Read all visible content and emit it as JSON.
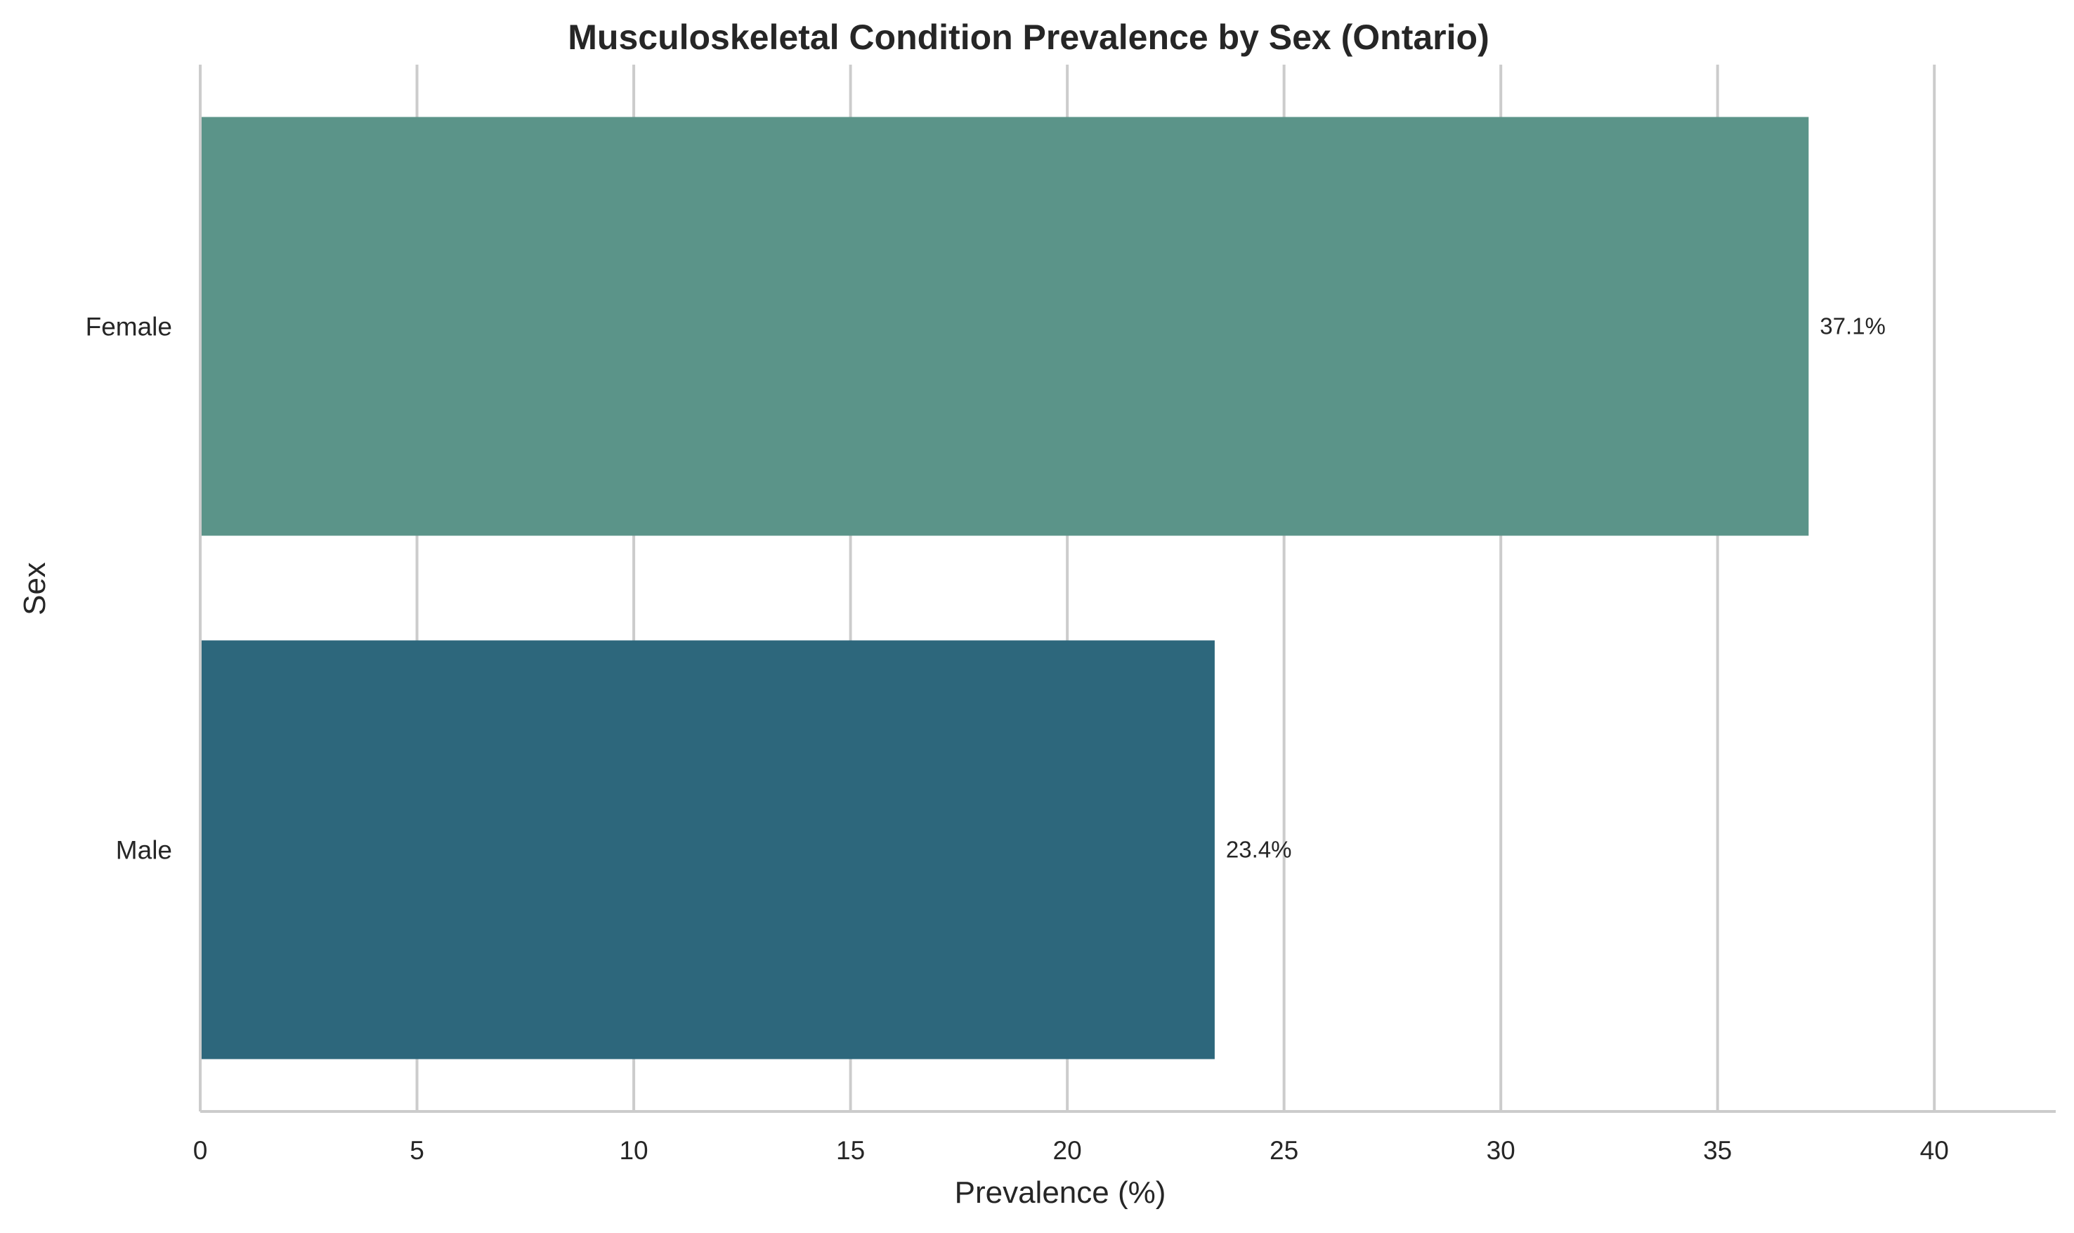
{
  "chart_data": {
    "type": "bar",
    "orientation": "horizontal",
    "title": "Musculoskeletal Condition Prevalence by Sex (Ontario)",
    "xlabel": "Prevalence (%)",
    "ylabel": "Sex",
    "categories": [
      "Female",
      "Male"
    ],
    "values": [
      37.1,
      23.4
    ],
    "data_labels": [
      "37.1%",
      "23.4%"
    ],
    "colors": [
      "#5b9489",
      "#2d677c"
    ],
    "xlim": [
      0,
      42.8
    ],
    "xticks": [
      0,
      5,
      10,
      15,
      20,
      25,
      30,
      35,
      40
    ],
    "xtick_labels": [
      "0",
      "5",
      "10",
      "15",
      "20",
      "25",
      "30",
      "35",
      "40"
    ],
    "grid": true,
    "grid_axis": "x",
    "legend": false
  }
}
